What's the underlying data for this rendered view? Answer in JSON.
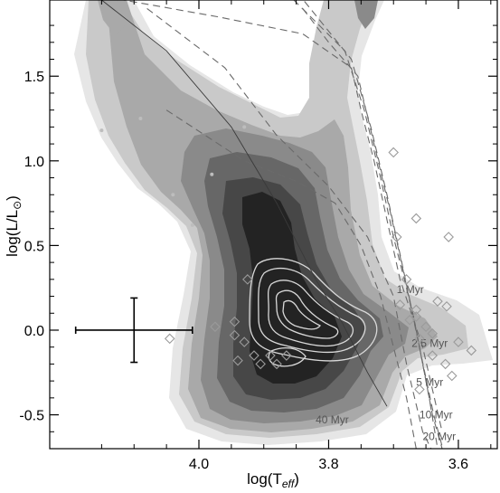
{
  "chart_data": {
    "type": "contour",
    "title": "",
    "xlabel_main": "log(T",
    "xlabel_sub": "eff",
    "xlabel_close": ")",
    "ylabel_main": "log(L/L",
    "ylabel_sub": "⊙",
    "ylabel_close": ")",
    "xlim": [
      4.23,
      3.54
    ],
    "ylim": [
      -0.7,
      1.95
    ],
    "x_ticks": [
      {
        "value": 4.0,
        "label": "4.0"
      },
      {
        "value": 3.8,
        "label": "3.8"
      },
      {
        "value": 3.6,
        "label": "3.6"
      }
    ],
    "y_ticks": [
      {
        "value": -0.5,
        "label": "-0.5"
      },
      {
        "value": 0.0,
        "label": "0.0"
      },
      {
        "value": 0.5,
        "label": "0.5"
      },
      {
        "value": 1.0,
        "label": "1.0"
      },
      {
        "value": 1.5,
        "label": "1.5"
      }
    ],
    "isochrones": [
      {
        "label": "1 Myr",
        "points": [
          [
            4.16,
            1.98
          ],
          [
            3.97,
            1.85
          ],
          [
            3.84,
            1.75
          ],
          [
            3.765,
            1.55
          ],
          [
            3.75,
            1.3
          ],
          [
            3.73,
            1.0
          ],
          [
            3.69,
            0.3
          ],
          [
            3.655,
            -0.1
          ],
          [
            3.625,
            -0.6
          ]
        ],
        "label_at": [
          3.695,
          0.22
        ]
      },
      {
        "label": "2.5 Myr",
        "points": [
          [
            3.88,
            2.05
          ],
          [
            3.775,
            1.65
          ],
          [
            3.745,
            1.3
          ],
          [
            3.72,
            0.9
          ],
          [
            3.7,
            0.55
          ],
          [
            3.67,
            0.1
          ],
          [
            3.645,
            -0.4
          ],
          [
            3.632,
            -0.7
          ]
        ],
        "label_at": [
          3.672,
          -0.1
        ]
      },
      {
        "label": "5 Myr",
        "points": [
          [
            3.86,
            2.05
          ],
          [
            3.765,
            1.6
          ],
          [
            3.735,
            1.2
          ],
          [
            3.71,
            0.8
          ],
          [
            3.69,
            0.45
          ],
          [
            3.665,
            0.0
          ],
          [
            3.64,
            -0.5
          ],
          [
            3.625,
            -0.7
          ]
        ],
        "label_at": [
          3.665,
          -0.33
        ]
      },
      {
        "label": "10 Myr",
        "points": [
          [
            3.84,
            1.9
          ],
          [
            3.8,
            1.7
          ],
          [
            3.755,
            1.5
          ],
          [
            3.705,
            0.7
          ],
          [
            3.685,
            0.35
          ],
          [
            3.66,
            -0.1
          ],
          [
            3.638,
            -0.5
          ],
          [
            3.624,
            -0.7
          ]
        ],
        "label_at": [
          3.66,
          -0.52
        ]
      },
      {
        "label": "20 Myr",
        "points": [
          [
            4.08,
            1.9
          ],
          [
            3.96,
            1.55
          ],
          [
            3.88,
            1.15
          ],
          [
            3.8,
            0.85
          ],
          [
            3.74,
            0.55
          ],
          [
            3.7,
            0.2
          ],
          [
            3.68,
            -0.2
          ],
          [
            3.655,
            -0.6
          ],
          [
            3.642,
            -0.7
          ]
        ],
        "label_at": [
          3.655,
          -0.65
        ]
      },
      {
        "label": "40 Myr",
        "points": [
          [
            4.05,
            1.3
          ],
          [
            3.93,
            1.0
          ],
          [
            3.85,
            0.88
          ],
          [
            3.79,
            0.75
          ],
          [
            3.75,
            0.5
          ],
          [
            3.72,
            0.2
          ],
          [
            3.7,
            -0.1
          ],
          [
            3.68,
            -0.4
          ],
          [
            3.665,
            -0.7
          ]
        ],
        "label_at": [
          3.82,
          -0.55
        ]
      }
    ],
    "zams_line": [
      [
        4.16,
        1.98
      ],
      [
        4.05,
        1.65
      ],
      [
        3.95,
        1.2
      ],
      [
        3.88,
        0.75
      ],
      [
        3.82,
        0.3
      ],
      [
        3.78,
        0.05
      ],
      [
        3.74,
        -0.25
      ],
      [
        3.71,
        -0.45
      ]
    ],
    "diamonds": [
      [
        3.7,
        1.05
      ],
      [
        3.665,
        0.66
      ],
      [
        3.615,
        0.55
      ],
      [
        3.695,
        0.55
      ],
      [
        3.68,
        0.3
      ],
      [
        3.69,
        0.15
      ],
      [
        3.632,
        0.17
      ],
      [
        3.618,
        0.14
      ],
      [
        3.665,
        0.12
      ],
      [
        3.665,
        0.08
      ],
      [
        3.675,
        0.06
      ],
      [
        3.65,
        0.02
      ],
      [
        3.64,
        -0.02
      ],
      [
        3.66,
        -0.05
      ],
      [
        3.6,
        -0.07
      ],
      [
        3.58,
        -0.12
      ],
      [
        3.64,
        -0.15
      ],
      [
        3.62,
        -0.2
      ],
      [
        3.61,
        -0.27
      ],
      [
        3.66,
        -0.35
      ],
      [
        3.925,
        0.3
      ],
      [
        3.945,
        0.05
      ],
      [
        3.975,
        0.02
      ],
      [
        4.045,
        -0.05
      ],
      [
        3.945,
        -0.03
      ],
      [
        3.93,
        -0.07
      ],
      [
        3.915,
        -0.15
      ],
      [
        3.94,
        -0.18
      ],
      [
        3.905,
        -0.2
      ],
      [
        3.89,
        -0.15
      ],
      [
        3.88,
        -0.2
      ],
      [
        3.865,
        -0.15
      ]
    ],
    "gray_dots": [
      [
        4.15,
        1.18
      ],
      [
        4.09,
        1.25
      ],
      [
        3.93,
        1.2
      ],
      [
        3.98,
        0.92
      ],
      [
        4.04,
        0.8
      ],
      [
        4.01,
        0.62
      ]
    ],
    "error_bar": {
      "x": 4.1,
      "y": 0.0,
      "xerr": 0.09,
      "yerr": 0.19
    }
  }
}
